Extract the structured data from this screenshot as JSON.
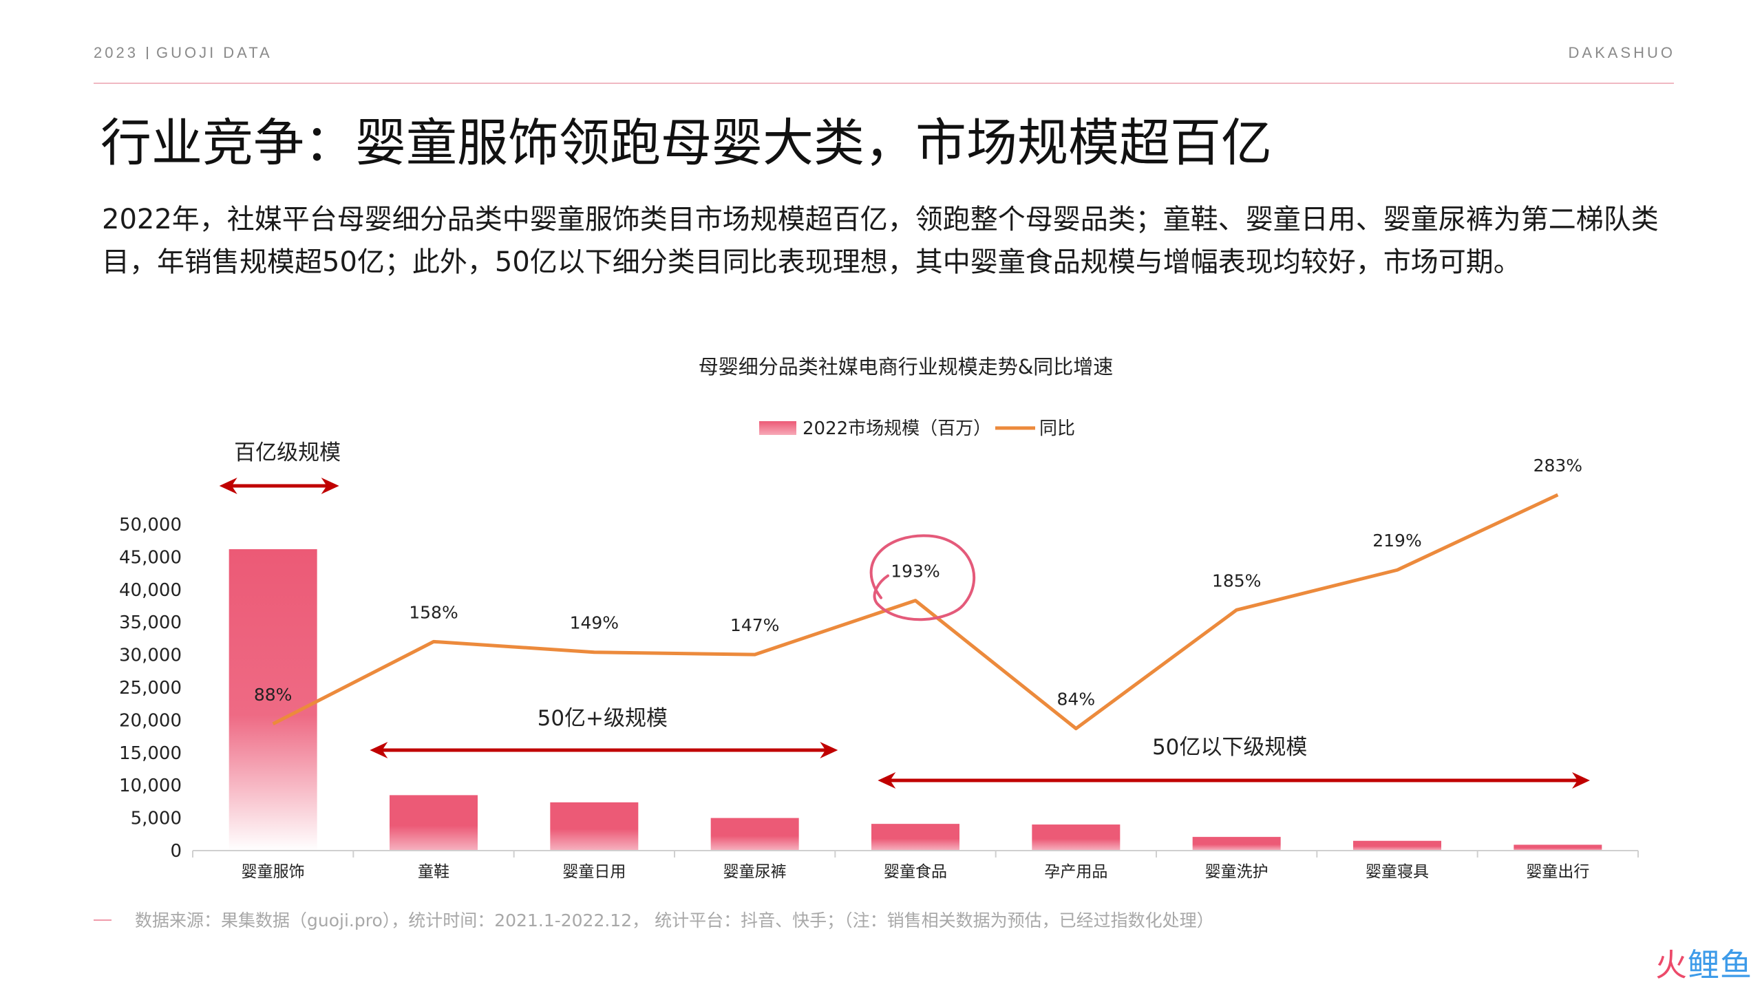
{
  "header": {
    "left_year": "2023",
    "left_brand": "GUOJI DATA",
    "right_brand": "DAKASHUO"
  },
  "title": "行业竞争：婴童服饰领跑母婴大类，市场规模超百亿",
  "body": "2022年，社媒平台母婴细分品类中婴童服饰类目市场规模超百亿，领跑整个母婴品类；童鞋、婴童日用、婴童尿裤为第二梯队类目，年销售规模超50亿；此外，50亿以下细分类目同比表现理想，其中婴童食品规模与增幅表现均较好，市场可期。",
  "footer": "数据来源：果集数据（guoji.pro），统计时间：2021.1-2022.12，  统计平台：抖音、快手；（注：销售相关数据为预估，已经过指数化处理）",
  "logo": {
    "part1": "火",
    "part2": "鲤鱼"
  },
  "colors": {
    "bar": "#ec5a76",
    "line": "#ec8a3c",
    "arrow": "#c00000",
    "circle": "#e45a7a"
  },
  "chart_data": {
    "type": "bar",
    "title": "母婴细分品类社媒电商行业规模走势&同比增速",
    "legend_position": "top",
    "categories": [
      "婴童服饰",
      "童鞋",
      "婴童日用",
      "婴童尿裤",
      "婴童食品",
      "孕产用品",
      "婴童洗护",
      "婴童寝具",
      "婴童出行"
    ],
    "series": [
      {
        "name": "2022市场规模（百万）",
        "type": "bar",
        "values": [
          46200,
          8500,
          7400,
          5000,
          4100,
          4000,
          2100,
          1500,
          900
        ]
      },
      {
        "name": "同比",
        "type": "line",
        "values": [
          88,
          158,
          149,
          147,
          193,
          84,
          185,
          219,
          283
        ],
        "labels": [
          "88%",
          "158%",
          "149%",
          "147%",
          "193%",
          "84%",
          "185%",
          "219%",
          "283%"
        ]
      }
    ],
    "yticks": [
      "0",
      "5,000",
      "10,000",
      "15,000",
      "20,000",
      "25,000",
      "30,000",
      "35,000",
      "40,000",
      "45,000",
      "50,000"
    ],
    "ylim": [
      0,
      50000
    ],
    "grid": false,
    "annotations": [
      {
        "text": "百亿级规模",
        "from": 0,
        "to": 0
      },
      {
        "text": "50亿+级规模",
        "from": 1,
        "to": 3
      },
      {
        "text": "50亿以下级规模",
        "from": 4,
        "to": 8
      }
    ],
    "highlight": {
      "category": "婴童食品",
      "label": "193%"
    }
  }
}
